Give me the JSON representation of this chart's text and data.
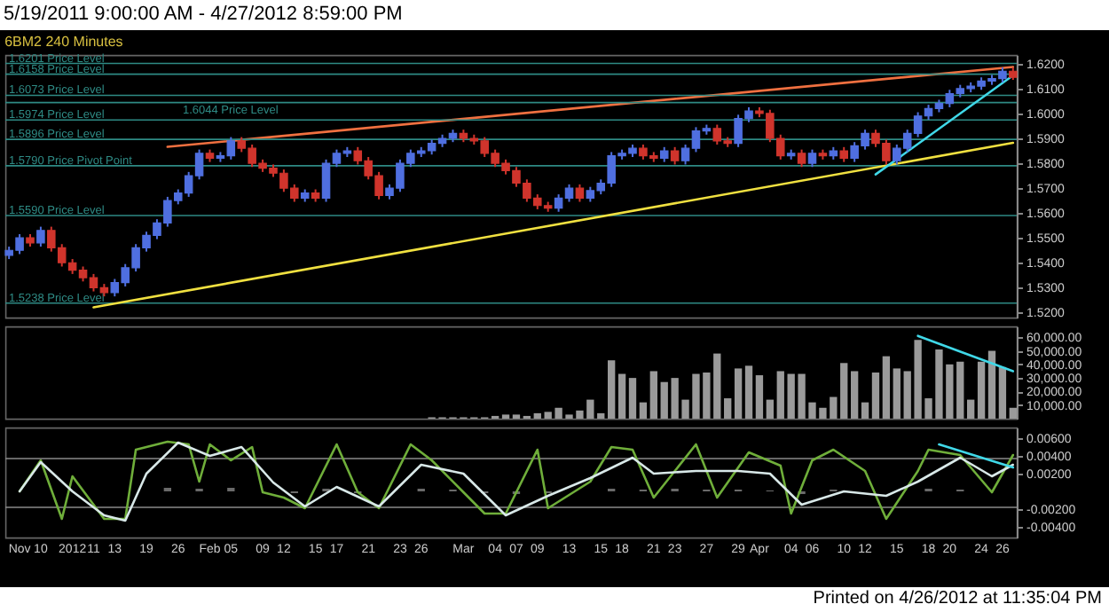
{
  "chart_data": [
    {
      "type": "candlestick",
      "title": "5/19/2011 9:00:00 AM - 4/27/2012 8:59:00 PM",
      "subtitle": "6BM2   240 Minutes",
      "categories": [
        null,
        null,
        null,
        null,
        null,
        null,
        null,
        null,
        null,
        null,
        null,
        null,
        null,
        null,
        null,
        null,
        null,
        null,
        null,
        null,
        null,
        null,
        null,
        null,
        null,
        null,
        null,
        null,
        null,
        null,
        null,
        null,
        null,
        null,
        null,
        null,
        null,
        null,
        null,
        null,
        null,
        null,
        null,
        null,
        null,
        null,
        null,
        null,
        null,
        null,
        null,
        null,
        null,
        null,
        null,
        null,
        null,
        null,
        null,
        null,
        null,
        null,
        null,
        null,
        null,
        null,
        null,
        null,
        null,
        null,
        null,
        null,
        null,
        null,
        null,
        null,
        null,
        null,
        null,
        null,
        null,
        null,
        null,
        null,
        null,
        null,
        null,
        null,
        null,
        null,
        null,
        null,
        null,
        null,
        null,
        null
      ],
      "ohlc": [
        [
          1.543,
          1.5465,
          1.5415,
          1.545
        ],
        [
          1.545,
          1.5515,
          1.5435,
          1.55
        ],
        [
          1.55,
          1.5515,
          1.5465,
          1.548
        ],
        [
          1.548,
          1.5545,
          1.5465,
          1.553
        ],
        [
          1.553,
          1.5545,
          1.5445,
          1.546
        ],
        [
          1.546,
          1.5475,
          1.5385,
          1.54
        ],
        [
          1.54,
          1.5415,
          1.5355,
          1.537
        ],
        [
          1.537,
          1.5385,
          1.5325,
          1.534
        ],
        [
          1.534,
          1.5355,
          1.5285,
          1.53
        ],
        [
          1.53,
          1.5315,
          1.5265,
          1.528
        ],
        [
          1.528,
          1.5335,
          1.5265,
          1.532
        ],
        [
          1.532,
          1.5395,
          1.5305,
          1.538
        ],
        [
          1.538,
          1.5475,
          1.5365,
          1.546
        ],
        [
          1.546,
          1.5525,
          1.5445,
          1.551
        ],
        [
          1.551,
          1.5575,
          1.5495,
          1.556
        ],
        [
          1.556,
          1.5665,
          1.5545,
          1.565
        ],
        [
          1.565,
          1.5695,
          1.5635,
          1.568
        ],
        [
          1.568,
          1.5765,
          1.5665,
          1.575
        ],
        [
          1.575,
          1.5855,
          1.5735,
          1.584
        ],
        [
          1.584,
          1.5855,
          1.5805,
          1.582
        ],
        [
          1.582,
          1.5845,
          1.5805,
          1.583
        ],
        [
          1.583,
          1.5905,
          1.5815,
          1.589
        ],
        [
          1.589,
          1.5905,
          1.5845,
          1.586
        ],
        [
          1.586,
          1.5875,
          1.5785,
          1.58
        ],
        [
          1.58,
          1.5815,
          1.5765,
          1.578
        ],
        [
          1.578,
          1.5795,
          1.5745,
          1.576
        ],
        [
          1.576,
          1.5775,
          1.5685,
          1.57
        ],
        [
          1.57,
          1.5715,
          1.5645,
          1.566
        ],
        [
          1.566,
          1.5695,
          1.5645,
          1.568
        ],
        [
          1.568,
          1.5695,
          1.5645,
          1.566
        ],
        [
          1.566,
          1.5815,
          1.5645,
          1.58
        ],
        [
          1.58,
          1.5855,
          1.5785,
          1.584
        ],
        [
          1.584,
          1.5865,
          1.5825,
          1.585
        ],
        [
          1.585,
          1.5865,
          1.5795,
          1.581
        ],
        [
          1.581,
          1.5825,
          1.5735,
          1.575
        ],
        [
          1.575,
          1.5765,
          1.5655,
          1.567
        ],
        [
          1.567,
          1.5715,
          1.5655,
          1.57
        ],
        [
          1.57,
          1.5815,
          1.5685,
          1.58
        ],
        [
          1.58,
          1.5855,
          1.5785,
          1.584
        ],
        [
          1.584,
          1.5865,
          1.5825,
          1.585
        ],
        [
          1.585,
          1.5895,
          1.5835,
          1.588
        ],
        [
          1.588,
          1.5915,
          1.5865,
          1.59
        ],
        [
          1.59,
          1.5935,
          1.5885,
          1.592
        ],
        [
          1.592,
          1.5935,
          1.5885,
          1.59
        ],
        [
          1.59,
          1.5915,
          1.5875,
          1.589
        ],
        [
          1.589,
          1.5905,
          1.5825,
          1.584
        ],
        [
          1.584,
          1.5855,
          1.5785,
          1.58
        ],
        [
          1.58,
          1.5815,
          1.5755,
          1.577
        ],
        [
          1.577,
          1.5785,
          1.5705,
          1.572
        ],
        [
          1.572,
          1.5735,
          1.5645,
          1.566
        ],
        [
          1.566,
          1.5675,
          1.5615,
          1.563
        ],
        [
          1.563,
          1.5645,
          1.5605,
          1.562
        ],
        [
          1.562,
          1.5675,
          1.5605,
          1.566
        ],
        [
          1.566,
          1.5715,
          1.5645,
          1.57
        ],
        [
          1.57,
          1.5715,
          1.5645,
          1.566
        ],
        [
          1.566,
          1.5705,
          1.5645,
          1.569
        ],
        [
          1.569,
          1.5735,
          1.5675,
          1.572
        ],
        [
          1.572,
          1.5845,
          1.5705,
          1.583
        ],
        [
          1.583,
          1.5855,
          1.5815,
          1.584
        ],
        [
          1.584,
          1.5875,
          1.5825,
          1.586
        ],
        [
          1.586,
          1.5875,
          1.5815,
          1.583
        ],
        [
          1.583,
          1.5845,
          1.5805,
          1.582
        ],
        [
          1.582,
          1.5865,
          1.5805,
          1.585
        ],
        [
          1.585,
          1.5865,
          1.5795,
          1.581
        ],
        [
          1.581,
          1.5875,
          1.5795,
          1.586
        ],
        [
          1.586,
          1.5945,
          1.5845,
          1.593
        ],
        [
          1.593,
          1.5955,
          1.5915,
          1.594
        ],
        [
          1.594,
          1.5955,
          1.5875,
          1.589
        ],
        [
          1.589,
          1.5905,
          1.5865,
          1.588
        ],
        [
          1.588,
          1.5995,
          1.5865,
          1.598
        ],
        [
          1.598,
          1.6025,
          1.5965,
          1.601
        ],
        [
          1.601,
          1.6025,
          1.5985,
          1.6
        ],
        [
          1.6,
          1.6015,
          1.5885,
          1.59
        ],
        [
          1.59,
          1.5915,
          1.5815,
          1.583
        ],
        [
          1.583,
          1.5855,
          1.5815,
          1.584
        ],
        [
          1.584,
          1.5855,
          1.5785,
          1.58
        ],
        [
          1.58,
          1.5855,
          1.5785,
          1.584
        ],
        [
          1.584,
          1.5855,
          1.5815,
          1.583
        ],
        [
          1.583,
          1.5865,
          1.5815,
          1.585
        ],
        [
          1.585,
          1.5865,
          1.5805,
          1.582
        ],
        [
          1.582,
          1.5885,
          1.5805,
          1.587
        ],
        [
          1.587,
          1.5935,
          1.5855,
          1.592
        ],
        [
          1.592,
          1.5935,
          1.5865,
          1.588
        ],
        [
          1.588,
          1.5895,
          1.5795,
          1.581
        ],
        [
          1.581,
          1.5875,
          1.5795,
          1.586
        ],
        [
          1.586,
          1.5935,
          1.5845,
          1.592
        ],
        [
          1.592,
          1.6005,
          1.5905,
          1.599
        ],
        [
          1.599,
          1.6035,
          1.5975,
          1.602
        ],
        [
          1.602,
          1.6055,
          1.6005,
          1.604
        ],
        [
          1.604,
          1.6095,
          1.6025,
          1.608
        ],
        [
          1.608,
          1.6115,
          1.6065,
          1.61
        ],
        [
          1.61,
          1.6125,
          1.6085,
          1.611
        ],
        [
          1.611,
          1.6145,
          1.6095,
          1.613
        ],
        [
          1.613,
          1.6155,
          1.6115,
          1.614
        ],
        [
          1.614,
          1.6185,
          1.6125,
          1.617
        ],
        [
          1.617,
          1.6185,
          1.6135,
          1.6145
        ]
      ],
      "series": [
        {
          "type": "line",
          "color": "#f07040",
          "values": [
            null,
            null,
            null,
            null,
            null,
            null,
            null,
            null,
            null,
            null,
            null,
            null,
            null,
            null,
            null,
            1.5866,
            null,
            null,
            null,
            null,
            null,
            null,
            null,
            null,
            null,
            null,
            null,
            null,
            null,
            null,
            null,
            null,
            null,
            null,
            null,
            null,
            null,
            null,
            null,
            null,
            null,
            null,
            null,
            null,
            null,
            null,
            null,
            null,
            null,
            null,
            null,
            null,
            null,
            null,
            null,
            null,
            null,
            null,
            null,
            null,
            null,
            null,
            null,
            null,
            null,
            null,
            null,
            null,
            null,
            null,
            null,
            null,
            null,
            null,
            null,
            null,
            null,
            null,
            null,
            null,
            null,
            null,
            null,
            null,
            null,
            null,
            null,
            null,
            null,
            null,
            null,
            null,
            null,
            null,
            null,
            1.6187
          ]
        },
        {
          "type": "line",
          "color": "#f0e040",
          "values": [
            null,
            null,
            null,
            null,
            null,
            null,
            null,
            null,
            1.5221,
            null,
            null,
            null,
            null,
            null,
            null,
            null,
            null,
            null,
            null,
            null,
            null,
            null,
            null,
            null,
            null,
            null,
            null,
            null,
            null,
            null,
            null,
            null,
            null,
            null,
            null,
            null,
            null,
            null,
            null,
            null,
            null,
            null,
            null,
            null,
            null,
            null,
            null,
            null,
            null,
            null,
            null,
            null,
            null,
            null,
            null,
            null,
            null,
            null,
            null,
            null,
            null,
            null,
            null,
            null,
            null,
            null,
            null,
            null,
            null,
            null,
            null,
            null,
            null,
            null,
            null,
            null,
            null,
            null,
            null,
            null,
            null,
            null,
            null,
            null,
            null,
            null,
            null,
            null,
            null,
            null,
            null,
            null,
            null,
            null,
            null,
            1.5882
          ]
        },
        {
          "type": "line",
          "color": "#40d8e8",
          "values": [
            null,
            null,
            null,
            null,
            null,
            null,
            null,
            null,
            null,
            null,
            null,
            null,
            null,
            null,
            null,
            null,
            null,
            null,
            null,
            null,
            null,
            null,
            null,
            null,
            null,
            null,
            null,
            null,
            null,
            null,
            null,
            null,
            null,
            null,
            null,
            null,
            null,
            null,
            null,
            null,
            null,
            null,
            null,
            null,
            null,
            null,
            null,
            null,
            null,
            null,
            null,
            null,
            null,
            null,
            null,
            null,
            null,
            null,
            null,
            null,
            null,
            null,
            null,
            null,
            null,
            null,
            null,
            null,
            null,
            null,
            null,
            null,
            null,
            null,
            null,
            null,
            null,
            null,
            null,
            null,
            null,
            null,
            1.5755,
            null,
            null,
            null,
            null,
            null,
            null,
            null,
            null,
            null,
            null,
            null,
            null,
            1.6153
          ]
        }
      ],
      "ylim": [
        1.518,
        1.6235
      ],
      "yticks": [
        {
          "value": 1.52,
          "label": "1.5200"
        },
        {
          "value": 1.53,
          "label": "1.5300"
        },
        {
          "value": 1.54,
          "label": "1.5400"
        },
        {
          "value": 1.55,
          "label": "1.5500"
        },
        {
          "value": 1.56,
          "label": "1.5600"
        },
        {
          "value": 1.57,
          "label": "1.5700"
        },
        {
          "value": 1.58,
          "label": "1.5800"
        },
        {
          "value": 1.59,
          "label": "1.5900"
        },
        {
          "value": 1.6,
          "label": "1.6000"
        },
        {
          "value": 1.61,
          "label": "1.6100"
        },
        {
          "value": 1.62,
          "label": "1.6200"
        }
      ],
      "ref_lines": [
        {
          "axis": "y",
          "value": 1.6201,
          "label": "1.6201 Price Level",
          "color": "#2e8a84"
        },
        {
          "axis": "y",
          "value": 1.6158,
          "label": "1.6158 Price Level",
          "color": "#2e8a84"
        },
        {
          "axis": "y",
          "value": 1.6073,
          "label": "1.6073 Price Level",
          "color": "#2e8a84"
        },
        {
          "axis": "y",
          "value": 1.6044,
          "label": "1.6044 Price Level",
          "color": "#2e8a84"
        },
        {
          "axis": "y",
          "value": 1.5974,
          "label": "1.5974 Price Level",
          "color": "#2e8a84"
        },
        {
          "axis": "y",
          "value": 1.5896,
          "label": "1.5896 Price Level",
          "color": "#2e8a84"
        },
        {
          "axis": "y",
          "value": 1.579,
          "label": "1.5790 Price Pivot Point",
          "color": "#2e8a84"
        },
        {
          "axis": "y",
          "value": 1.559,
          "label": "1.5590 Price Level",
          "color": "#2e8a84"
        },
        {
          "axis": "y",
          "value": 1.5238,
          "label": "1.5238 Price Level",
          "color": "#2e8a84"
        }
      ],
      "tick_labels": "y"
    },
    {
      "type": "bar",
      "categories": [
        null,
        null,
        null,
        null,
        null,
        null,
        null,
        null,
        null,
        null,
        null,
        null,
        null,
        null,
        null,
        null,
        null,
        null,
        null,
        null,
        null,
        null,
        null,
        null,
        null,
        null,
        null,
        null,
        null,
        null,
        null,
        null,
        null,
        null,
        null,
        null,
        null,
        null,
        null,
        null,
        null,
        null,
        null,
        null,
        null,
        null,
        null,
        null,
        null,
        null,
        null,
        null,
        null,
        null,
        null,
        null,
        null,
        null,
        null,
        null,
        null,
        null,
        null,
        null,
        null,
        null,
        null,
        null,
        null,
        null,
        null,
        null,
        null,
        null,
        null,
        null,
        null,
        null,
        null,
        null,
        null,
        null,
        null,
        null,
        null,
        null,
        null,
        null,
        null,
        null,
        null,
        null,
        null,
        null,
        null,
        null
      ],
      "series": [
        {
          "type": "bar",
          "color": "#9a9a9a",
          "values": [
            0,
            0,
            0,
            0,
            0,
            0,
            0,
            0,
            0,
            0,
            0,
            0,
            0,
            0,
            0,
            0,
            0,
            0,
            0,
            0,
            0,
            0,
            0,
            0,
            0,
            0,
            0,
            0,
            0,
            0,
            0,
            0,
            0,
            0,
            0,
            0,
            0,
            0,
            0,
            0,
            1000,
            1000,
            1000,
            1000,
            1000,
            1000,
            2000,
            3000,
            3000,
            2000,
            4000,
            5000,
            8000,
            3000,
            6000,
            14000,
            4000,
            43000,
            33000,
            30000,
            12000,
            35000,
            27000,
            30000,
            14000,
            33000,
            34000,
            48000,
            15000,
            37000,
            39000,
            32000,
            14000,
            35000,
            33000,
            33000,
            12000,
            8000,
            16000,
            41000,
            35000,
            12000,
            34000,
            46000,
            37000,
            35000,
            58000,
            15000,
            51000,
            40000,
            42000,
            14000,
            42000,
            50000,
            38000,
            8000
          ]
        },
        {
          "type": "line",
          "color": "#40d8e8",
          "values": [
            null,
            null,
            null,
            null,
            null,
            null,
            null,
            null,
            null,
            null,
            null,
            null,
            null,
            null,
            null,
            null,
            null,
            null,
            null,
            null,
            null,
            null,
            null,
            null,
            null,
            null,
            null,
            null,
            null,
            null,
            null,
            null,
            null,
            null,
            null,
            null,
            null,
            null,
            null,
            null,
            null,
            null,
            null,
            null,
            null,
            null,
            null,
            null,
            null,
            null,
            null,
            null,
            null,
            null,
            null,
            null,
            null,
            null,
            null,
            null,
            null,
            null,
            null,
            null,
            null,
            null,
            null,
            null,
            null,
            null,
            null,
            null,
            null,
            null,
            null,
            null,
            null,
            null,
            null,
            null,
            null,
            null,
            null,
            null,
            null,
            null,
            61000,
            null,
            null,
            null,
            null,
            null,
            null,
            null,
            null,
            35000
          ]
        }
      ],
      "ylim": [
        0,
        68000
      ],
      "yticks": [
        {
          "value": 10000,
          "label": "10,000.00"
        },
        {
          "value": 20000,
          "label": "20,000.00"
        },
        {
          "value": 30000,
          "label": "30,000.00"
        },
        {
          "value": 40000,
          "label": "40,000.00"
        },
        {
          "value": 50000,
          "label": "50,000.00"
        },
        {
          "value": 60000,
          "label": "60,000.00"
        }
      ],
      "tick_labels": "y"
    },
    {
      "type": "line",
      "categories": [
        null,
        "Nov",
        null,
        "10",
        null,
        null,
        "2012",
        null,
        "11",
        null,
        "13",
        null,
        null,
        "19",
        null,
        null,
        "26",
        null,
        null,
        "Feb",
        null,
        "05",
        null,
        null,
        "09",
        null,
        "12",
        null,
        null,
        "15",
        null,
        "17",
        null,
        null,
        "21",
        null,
        null,
        "23",
        null,
        "26",
        null,
        null,
        null,
        "Mar",
        null,
        null,
        "04",
        null,
        "07",
        null,
        "09",
        null,
        null,
        "13",
        null,
        null,
        "15",
        null,
        "18",
        null,
        null,
        "21",
        null,
        "23",
        null,
        null,
        "27",
        null,
        null,
        "29",
        null,
        "Apr",
        null,
        null,
        "04",
        null,
        "06",
        null,
        null,
        "10",
        null,
        "12",
        null,
        null,
        "15",
        null,
        null,
        "18",
        null,
        "20",
        null,
        null,
        "24",
        null,
        "26",
        null
      ],
      "series": [
        {
          "type": "bar",
          "color": "#6a6a6a",
          "values": [
            null,
            null,
            null,
            null,
            null,
            null,
            null,
            null,
            null,
            null,
            null,
            null,
            null,
            null,
            null,
            0.0004,
            null,
            null,
            0.0003,
            null,
            null,
            0.0004,
            null,
            null,
            null,
            null,
            null,
            -0.0002,
            null,
            null,
            0.0003,
            null,
            null,
            -0.0002,
            null,
            null,
            null,
            null,
            null,
            0.0003,
            null,
            null,
            0.0002,
            null,
            null,
            -0.0002,
            null,
            null,
            -0.0003,
            null,
            null,
            -0.0002,
            null,
            null,
            null,
            null,
            null,
            0.0003,
            null,
            null,
            0.0002,
            null,
            null,
            0.0003,
            null,
            null,
            0.0002,
            null,
            null,
            0.0002,
            null,
            null,
            0.0001,
            null,
            null,
            -0.0003,
            null,
            null,
            0.0002,
            null,
            null,
            null,
            null,
            null,
            null,
            null,
            null,
            0.0003,
            null,
            null,
            0.0002,
            null,
            null,
            null,
            null,
            null
          ]
        },
        {
          "type": "line",
          "color": "#6fae3a",
          "values": [
            null,
            0,
            null,
            0.0035,
            null,
            -0.0031,
            0.0017,
            null,
            null,
            -0.0031,
            null,
            -0.0031,
            0.0047,
            null,
            null,
            0.0056,
            null,
            0.0053,
            0.0011,
            0.0053,
            null,
            0.0035,
            null,
            0.005,
            -0.0001,
            null,
            -0.0007,
            null,
            -0.0019,
            null,
            null,
            0.0053,
            null,
            -0.0001,
            null,
            -0.0019,
            null,
            null,
            0.0053,
            null,
            0.0035,
            null,
            null,
            -0.0001,
            null,
            -0.0025,
            null,
            -0.0025,
            null,
            null,
            0.0047,
            -0.0019,
            null,
            null,
            null,
            0.0011,
            null,
            0.005,
            null,
            0.0047,
            null,
            -0.0007,
            null,
            null,
            null,
            0.0053,
            null,
            -0.0007,
            null,
            null,
            0.0044,
            null,
            null,
            0.0029,
            -0.0025,
            null,
            0.0035,
            null,
            0.0047,
            null,
            null,
            0.0023,
            null,
            -0.0031,
            null,
            null,
            0.0023,
            0.0047,
            null,
            null,
            0.0041,
            null,
            null,
            -0.0001,
            null,
            0.0041
          ]
        },
        {
          "type": "line",
          "color": "#d8e8e8",
          "values": [
            null,
            0,
            null,
            0.0033,
            null,
            null,
            0,
            null,
            null,
            -0.0027,
            null,
            -0.0033,
            null,
            0.002,
            null,
            null,
            0.0055,
            null,
            null,
            0.004,
            null,
            null,
            0.005,
            null,
            null,
            0.001,
            null,
            null,
            -0.0017,
            null,
            null,
            0.0005,
            null,
            null,
            null,
            -0.0017,
            null,
            null,
            null,
            0.003,
            null,
            null,
            null,
            0.002,
            null,
            null,
            null,
            -0.0027,
            null,
            null,
            null,
            -0.0005,
            null,
            null,
            null,
            0.0015,
            null,
            null,
            null,
            0.0038,
            null,
            0.002,
            null,
            null,
            null,
            0.0023,
            null,
            null,
            null,
            0.0023,
            null,
            null,
            0.002,
            null,
            null,
            -0.0015,
            null,
            null,
            null,
            0,
            null,
            null,
            null,
            -0.0005,
            null,
            null,
            0.0011,
            null,
            null,
            null,
            0.0038,
            null,
            null,
            0.0017,
            null,
            0.003
          ]
        },
        {
          "type": "line",
          "color": "#40d8e8",
          "values": [
            null,
            null,
            null,
            null,
            null,
            null,
            null,
            null,
            null,
            null,
            null,
            null,
            null,
            null,
            null,
            null,
            null,
            null,
            null,
            null,
            null,
            null,
            null,
            null,
            null,
            null,
            null,
            null,
            null,
            null,
            null,
            null,
            null,
            null,
            null,
            null,
            null,
            null,
            null,
            null,
            null,
            null,
            null,
            null,
            null,
            null,
            null,
            null,
            null,
            null,
            null,
            null,
            null,
            null,
            null,
            null,
            null,
            null,
            null,
            null,
            null,
            null,
            null,
            null,
            null,
            null,
            null,
            null,
            null,
            null,
            null,
            null,
            null,
            null,
            null,
            null,
            null,
            null,
            null,
            null,
            null,
            null,
            null,
            null,
            null,
            null,
            null,
            null,
            0.0053,
            null,
            null,
            null,
            null,
            null,
            null,
            0.0027
          ]
        }
      ],
      "ylim": [
        -0.0052,
        0.0072
      ],
      "yticks": [
        {
          "value": 0.006,
          "label": "0.00600"
        },
        {
          "value": 0.004,
          "label": "0.00400"
        },
        {
          "value": 0.002,
          "label": "0.00200"
        },
        {
          "value": -0.002,
          "label": "-0.00200"
        },
        {
          "value": -0.004,
          "label": "-0.00400"
        }
      ],
      "ref_lines": [
        {
          "axis": "y",
          "value": 0.0037,
          "color": "#8a8a8a"
        },
        {
          "axis": "y",
          "value": -0.0018,
          "color": "#8a8a8a"
        }
      ],
      "annotations": [
        "Printed on 4/26/2012 at 11:35:04 PM"
      ]
    }
  ]
}
